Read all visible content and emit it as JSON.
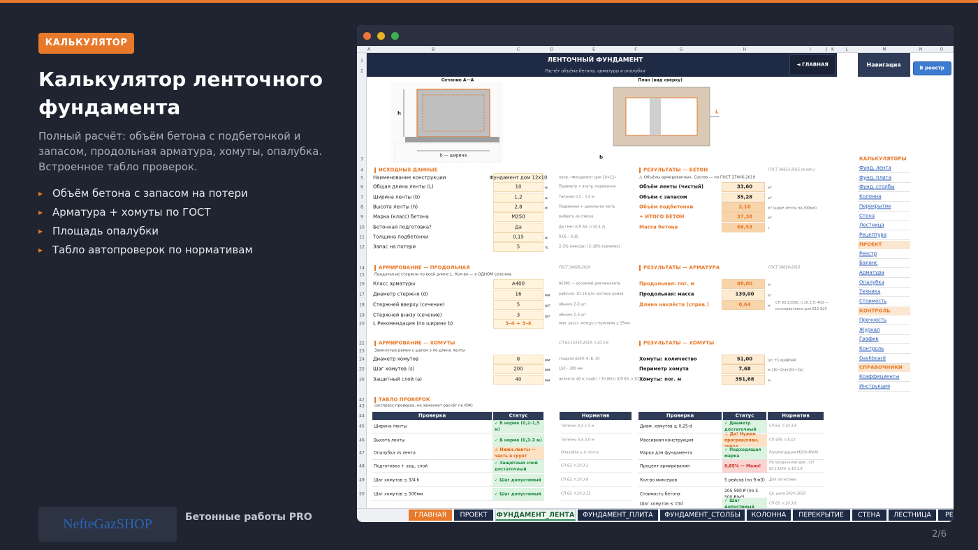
{
  "badge": "КАЛЬКУЛЯТОР",
  "title": "Калькулятор ленточного фундамента",
  "description": "Полный расчёт: объём бетона с подбетонкой и запасом, продольная арматура, хомуты, опалубка. Встроенное табло проверок.",
  "bullets": [
    "Объём бетона с запасом на потери",
    "Арматура + хомуты по ГОСТ",
    "Площадь опалубки",
    "Табло автопроверок по нормативам"
  ],
  "brand": {
    "logo": "NefteGazSHOP",
    "name": "Бетонные работы PRO"
  },
  "page_number": "2/6",
  "sheet": {
    "columns": [
      "A",
      "B",
      "C",
      "D",
      "E",
      "F",
      "G",
      "H",
      "I",
      "J",
      "K",
      "L",
      "M",
      "N",
      "O"
    ],
    "row_numbers": [
      1,
      2,
      3,
      4,
      5,
      6,
      7,
      8,
      9,
      10,
      11,
      12,
      14,
      15,
      16,
      17,
      18,
      19,
      20,
      22,
      23,
      24,
      25,
      26,
      42,
      43,
      44,
      45,
      46,
      47,
      48,
      49,
      50
    ],
    "title": "ЛЕНТОЧНЫЙ ФУНДАМЕНТ",
    "subtitle": "Расчёт объёма бетона, арматуры и опалубки",
    "buttons": {
      "home": "◄ ГЛАВНАЯ",
      "nav": "Навигация",
      "registry": "В реестр"
    },
    "drawings": {
      "section": "Сечение А—А",
      "plan": "План (вид сверху)",
      "h": "h",
      "width": "b — ширина",
      "L": "L",
      "b": "b"
    },
    "inputs": {
      "heading": "ИСХОДНЫЕ ДАННЫЕ",
      "rows": [
        {
          "label": "Наименование конструкции",
          "value": "Фундамент дом 12x10",
          "note": "напр. «Фундамент дом 10×12»"
        },
        {
          "label": "Общая длина ленты (L)",
          "value": "10",
          "unit": "м",
          "note": "Периметр + внутр. перемычки"
        },
        {
          "label": "Ширина ленты (b)",
          "value": "1,2",
          "unit": "м",
          "note": "Типично 0,2 – 1,5 м"
        },
        {
          "label": "Высота ленты (h)",
          "value": "2,8",
          "unit": "м",
          "note": "Подземная + цокольная часть"
        },
        {
          "label": "Марка (класс) бетона",
          "value": "M250",
          "note": "выбрать из списка"
        },
        {
          "label": "Бетонная подготовка?",
          "value": "Да",
          "note": "Да / Нет (СП 63, п.10.3.2)"
        },
        {
          "label": "Толщина подбетонки",
          "value": "0,15",
          "unit": "м",
          "note": "0,05 – 0,15"
        },
        {
          "label": "Запас на потери",
          "value": "5",
          "unit": "%",
          "note": "2–3% (миксер) / 5–10% (самомес)"
        }
      ]
    },
    "results_concrete": {
      "heading": "РЕЗУЛЬТАТЫ — БЕТОН",
      "reference": "ГОСТ 26633-2015 (в изм.)",
      "note": "⚠ Объёмы армированных. Состав — по ГОСТ 27006-2019",
      "rows": [
        {
          "label": "Объём ленты (чистый)",
          "value": "33,60",
          "unit": "м³"
        },
        {
          "label": "Объём с запасом",
          "value": "35,28",
          "unit": "м³"
        },
        {
          "label": "Объём подбетонки",
          "value": "2,10",
          "unit": "м³ (шире ленты на 200мм)"
        },
        {
          "label": "+ ИТОГО БЕТОН",
          "value": "37,38",
          "unit": "м³"
        },
        {
          "label": "Масса бетона",
          "value": "88,53",
          "unit": "т"
        }
      ]
    },
    "rebar": {
      "heading": "АРМИРОВАНИЕ — ПРОДОЛЬНАЯ",
      "reference": "ГОСТ 34028-2016",
      "note": "Продольные стержни по всей длине L. Кол-во — в ОДНОМ сечении.",
      "rows": [
        {
          "label": "Класс арматуры",
          "value": "A400",
          "note": "A500С — основной для монолита"
        },
        {
          "label": "Диаметр стержня (d)",
          "value": "16",
          "unit": "мм",
          "note": "рабочая: 10–16 для частных домов"
        },
        {
          "label": "Стержней вверху (сечение)",
          "value": "5",
          "unit": "шт",
          "note": "обычно 2–3 шт"
        },
        {
          "label": "Стержней внизу (сечение)",
          "value": "3",
          "unit": "шт",
          "note": "обычно 2–3 шт"
        },
        {
          "label": "L Рекомендация (по ширине b)",
          "value": "3–4 + 3–4",
          "note": "мин. расст. между стержнями ≥ 25мм"
        }
      ]
    },
    "results_rebar": {
      "heading": "РЕЗУЛЬТАТЫ — АРМАТУРА",
      "reference": "ГОСТ 34028-2016",
      "rows": [
        {
          "label": "Продольная: пог. м",
          "value": "88,00",
          "unit": "м"
        },
        {
          "label": "Продольная: масса",
          "value": "139,00",
          "unit": "кг"
        },
        {
          "label": "Длина нахлёста (справ.)",
          "value": "0,64",
          "unit": "м",
          "note": "СП 63.13330, п.10.3.5: 40d — консервативно для В15-В25"
        }
      ]
    },
    "stirrups": {
      "heading": "АРМИРОВАНИЕ — ХОМУТЫ",
      "reference": "СП 63.13330.2018, п.10.3.8",
      "note": "Замкнутые рамки с шагом s по длине ленты",
      "rows": [
        {
          "label": "Диаметр хомутов",
          "value": "8",
          "unit": "мм",
          "note": "гладкая A240: 6, 8, 10"
        },
        {
          "label": "Шаг хомутов (s)",
          "value": "200",
          "unit": "мм",
          "note": "150 – 300 мм"
        },
        {
          "label": "Защитный слой (a)",
          "value": "40",
          "unit": "мм",
          "note": "ж/лента: 40 (с подб.) / 70 (без) (СП 63, п.10.3.2)"
        }
      ]
    },
    "results_stirrups": {
      "heading": "РЕЗУЛЬТАТЫ — ХОМУТЫ",
      "rows": [
        {
          "label": "Хомуты: количество",
          "value": "51,00",
          "unit": "шт +1 крайний"
        },
        {
          "label": "Периметр хомута",
          "value": "7,68",
          "unit": "м  2(b−2a)+2(h−2a)"
        },
        {
          "label": "Хомуты: пог. м",
          "value": "391,68",
          "unit": "м"
        }
      ]
    },
    "nav": [
      {
        "title": "КАЛЬКУЛЯТОРЫ",
        "items": [
          "Фунд. лента",
          "Фунд. плита",
          "Фунд. столбы",
          "Колонна",
          "Перекрытие",
          "Стена",
          "Лестница",
          "Рецептура"
        ]
      },
      {
        "title": "ПРОЕКТ",
        "items": [
          "Реестр",
          "Баланс",
          "Арматура",
          "Опалубка",
          "Техника",
          "Стоимость"
        ]
      },
      {
        "title": "КОНТРОЛЬ",
        "items": [
          "Прочность",
          "Журнал",
          "График",
          "Контроль",
          "Dashboard"
        ]
      },
      {
        "title": "СПРАВОЧНИКИ",
        "items": [
          "Коэффициенты",
          "Инструкция"
        ]
      }
    ],
    "checks": {
      "heading": "ТАБЛО ПРОВЕРОК",
      "note": "(экспресс-проверка, не заменяет расчёт по КЖ)",
      "headers": [
        "Проверка",
        "Статус",
        "Норматив"
      ],
      "left": [
        [
          "Ширина ленты",
          "✓ В норме (0,2–1,5 м)",
          "Типично 0,2–1,5 м"
        ],
        [
          "Высота ленты",
          "✓ В норме (0,3–3 м)",
          "Типично 0,3–3,0 м"
        ],
        [
          "Опалубка vs лента",
          "⚠ Нижн.ленты — часть в грунт",
          "Опалубка ≥ h ленты"
        ],
        [
          "Подготовка + защ. слой",
          "✓ Защитный слой достаточный",
          "СП 63, п.10.3.2"
        ],
        [
          "Шаг хомутов ≤ 3/4 h",
          "✓ Шаг допустимый",
          "СП 63, п.10.3.8"
        ],
        [
          "Шаг хомутов ≤ 500мм",
          "✓ Шаг допустимый",
          "СП 63, п.10.3.11"
        ]
      ],
      "right": [
        [
          "Диам. хомутов ≥ 0,25·d",
          "✓ Диаметр достаточный",
          "СП 63, п.10.3.8"
        ],
        [
          "Массивная конструкция",
          "⚠ Да! Нужен прогрев/план. твёрд",
          "СП 435, п.5.12"
        ],
        [
          "Марка для фундамента",
          "✓ Подходящая марка",
          "Рекомендация M200–M400"
        ],
        [
          "Процент армирования",
          "0,85% — Мало!",
          "По продольной арм.: СП 63.13330, п.10.3.6"
        ],
        [
          "Кол-во миксеров",
          "5 рейсов (по 9 м3)",
          "Для логистики"
        ],
        [
          "Стоимость бетона",
          "205 590 ₽ (по 5 500 ₽/м³)",
          "Ср. цена 2024–2025"
        ],
        [
          "Шаг хомутов ≤ 15d",
          "✓ Шаг допустимый",
          "СП 63, п.10.3.8"
        ]
      ]
    },
    "tabs": [
      "ГЛАВНАЯ",
      "ПРОЕКТ",
      "ФУНДАМЕНТ_ЛЕНТА",
      "ФУНДАМЕНТ_ПЛИТА",
      "ФУНДАМЕНТ_СТОЛБЫ",
      "КОЛОННА",
      "ПЕРЕКРЫТИЕ",
      "СТЕНА",
      "ЛЕСТНИЦА",
      "РЕЦЕПТУРА"
    ]
  }
}
